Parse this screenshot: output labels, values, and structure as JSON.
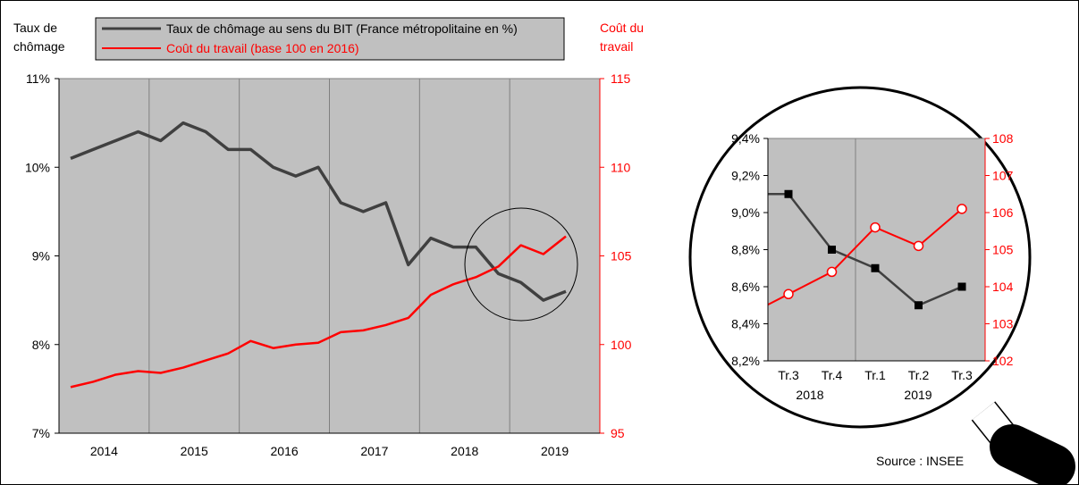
{
  "colors": {
    "unemployment": "#404040",
    "labor_cost": "#ff0000",
    "plot_bg": "#c0c0c0",
    "legend_bg": "#c0c0c0",
    "grid": "#808080"
  },
  "labels": {
    "left_axis_title": [
      "Taux de",
      "chômage"
    ],
    "right_axis_title": [
      "Coût du",
      "travail"
    ],
    "source": "Source : INSEE"
  },
  "chart_data": [
    {
      "type": "line",
      "x_tick_labels": [
        "2014",
        "2015",
        "2016",
        "2017",
        "2018",
        "2019"
      ],
      "y_left": {
        "range": [
          7,
          11
        ],
        "ticks": [
          "7%",
          "8%",
          "9%",
          "10%",
          "11%"
        ]
      },
      "y_right": {
        "range": [
          95,
          115
        ],
        "ticks": [
          "95",
          "100",
          "105",
          "110",
          "115"
        ]
      },
      "grid": true,
      "legend": {
        "placement": "top",
        "entries": [
          "Taux de chômage au sens du BIT (France métropolitaine en %)",
          "Coût du travail (base 100 en 2016)"
        ]
      },
      "series": [
        {
          "name": "Taux de chômage au sens du BIT (France métropolitaine en %)",
          "axis": "left",
          "values": [
            10.1,
            10.2,
            10.3,
            10.4,
            10.3,
            10.5,
            10.4,
            10.2,
            10.2,
            10.0,
            9.9,
            10.0,
            9.6,
            9.5,
            9.6,
            8.9,
            9.2,
            9.1,
            9.1,
            8.8,
            8.7,
            8.5,
            8.6
          ]
        },
        {
          "name": "Coût du travail (base 100 en 2016)",
          "axis": "right",
          "values": [
            97.6,
            97.9,
            98.3,
            98.5,
            98.4,
            98.7,
            99.1,
            99.5,
            100.2,
            99.8,
            100.0,
            100.1,
            100.7,
            100.8,
            101.1,
            101.5,
            102.8,
            103.4,
            103.8,
            104.4,
            105.6,
            105.1,
            106.1
          ]
        }
      ]
    },
    {
      "type": "line",
      "categories": [
        "Tr.3",
        "Tr.4",
        "Tr.1",
        "Tr.2",
        "Tr.3"
      ],
      "years": [
        "2018",
        "2019"
      ],
      "y_left": {
        "range": [
          8.2,
          9.4
        ],
        "ticks": [
          "8,2%",
          "8,4%",
          "8,6%",
          "8,8%",
          "9,0%",
          "9,2%",
          "9,4%"
        ]
      },
      "y_right": {
        "range": [
          102,
          108
        ],
        "ticks": [
          "102",
          "103",
          "104",
          "105",
          "106",
          "107",
          "108"
        ]
      },
      "grid": true,
      "series": [
        {
          "axis": "left",
          "values": [
            9.1,
            8.8,
            8.7,
            8.5,
            8.6
          ]
        },
        {
          "axis": "right",
          "values": [
            103.8,
            104.4,
            105.6,
            105.1,
            106.1
          ]
        }
      ]
    }
  ]
}
